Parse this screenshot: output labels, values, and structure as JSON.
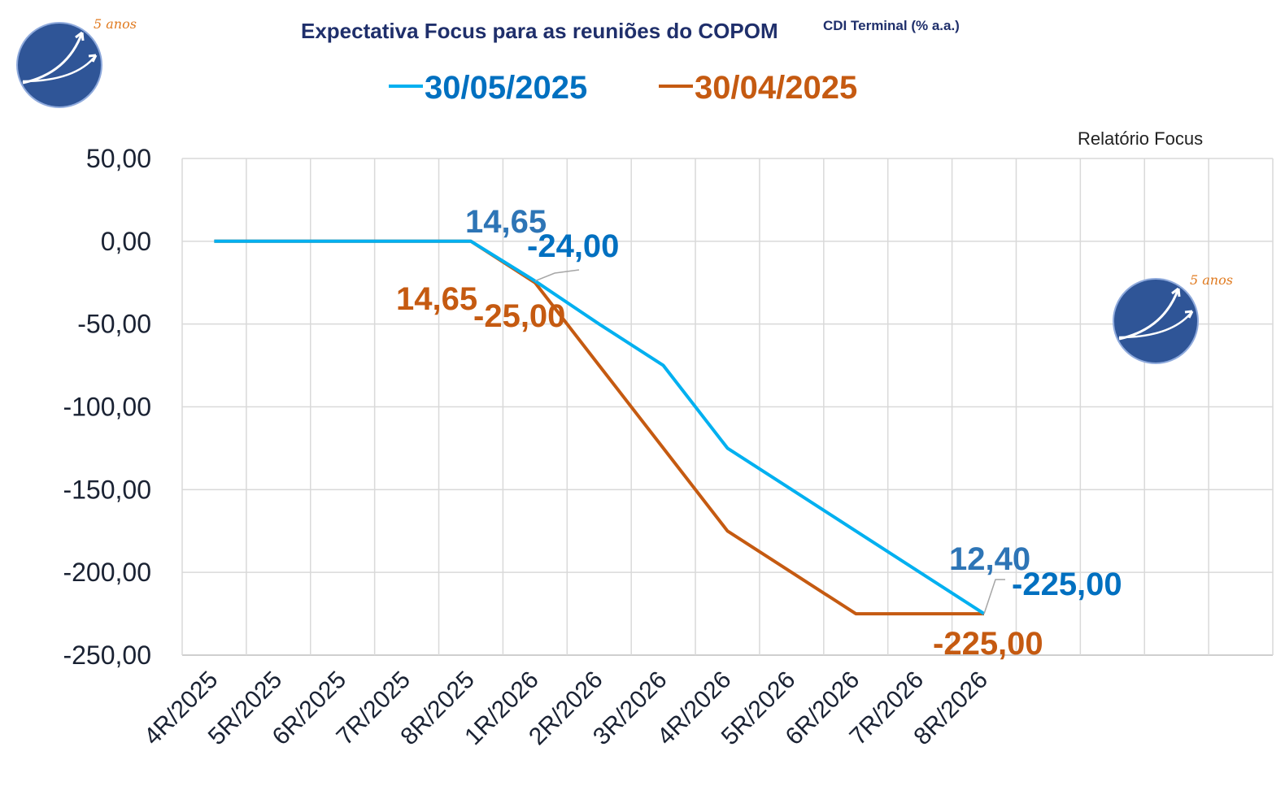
{
  "header": {
    "title": "Expectativa Focus para as reuniões do COPOM",
    "subtitle": "CDI Terminal (% a.a.)",
    "source": "Relatório Focus"
  },
  "logo": {
    "icon": "arrow-curve-icon",
    "text": "5 anos",
    "bg_color": "#2f5597",
    "accent_color": "#e07a1f"
  },
  "chart_data": {
    "type": "line",
    "categories": [
      "4R/2025",
      "5R/2025",
      "6R/2025",
      "7R/2025",
      "8R/2025",
      "1R/2026",
      "2R/2026",
      "3R/2026",
      "4R/2026",
      "5R/2026",
      "6R/2026",
      "7R/2026",
      "8R/2026"
    ],
    "ylim": [
      -250,
      50
    ],
    "yticks": [
      50,
      0,
      -50,
      -100,
      -150,
      -200,
      -250
    ],
    "ytick_labels": [
      "50,00",
      "0,00",
      "-50,00",
      "-100,00",
      "-150,00",
      "-200,00",
      "-250,00"
    ],
    "grid": true,
    "legend_position": "top",
    "series": [
      {
        "name": "30/05/2025",
        "color": "#00b0f0",
        "legend_color": "#0070c0",
        "values": [
          0,
          0,
          0,
          0,
          0,
          -24,
          -50,
          -75,
          -125,
          -150,
          -175,
          -200,
          -225
        ]
      },
      {
        "name": "30/04/2025",
        "color": "#c55a11",
        "legend_color": "#c55a11",
        "values": [
          0,
          0,
          0,
          0,
          0,
          -25,
          -75,
          -125,
          -175,
          -200,
          -225,
          -225,
          -225
        ]
      }
    ],
    "annotations": [
      {
        "series": 0,
        "kind": "rate",
        "text": "14,65",
        "color": "#2e75b6"
      },
      {
        "series": 0,
        "kind": "change",
        "text": "-24,00",
        "color": "#0070c0"
      },
      {
        "series": 1,
        "kind": "rate",
        "text": "14,65",
        "color": "#c55a11"
      },
      {
        "series": 1,
        "kind": "change",
        "text": "-25,00",
        "color": "#c55a11"
      },
      {
        "series": 0,
        "kind": "rate",
        "text": "12,40",
        "color": "#2e75b6"
      },
      {
        "series": 0,
        "kind": "change",
        "text": "-225,00",
        "color": "#0070c0"
      },
      {
        "series": 1,
        "kind": "change",
        "text": "-225,00",
        "color": "#c55a11"
      }
    ]
  }
}
